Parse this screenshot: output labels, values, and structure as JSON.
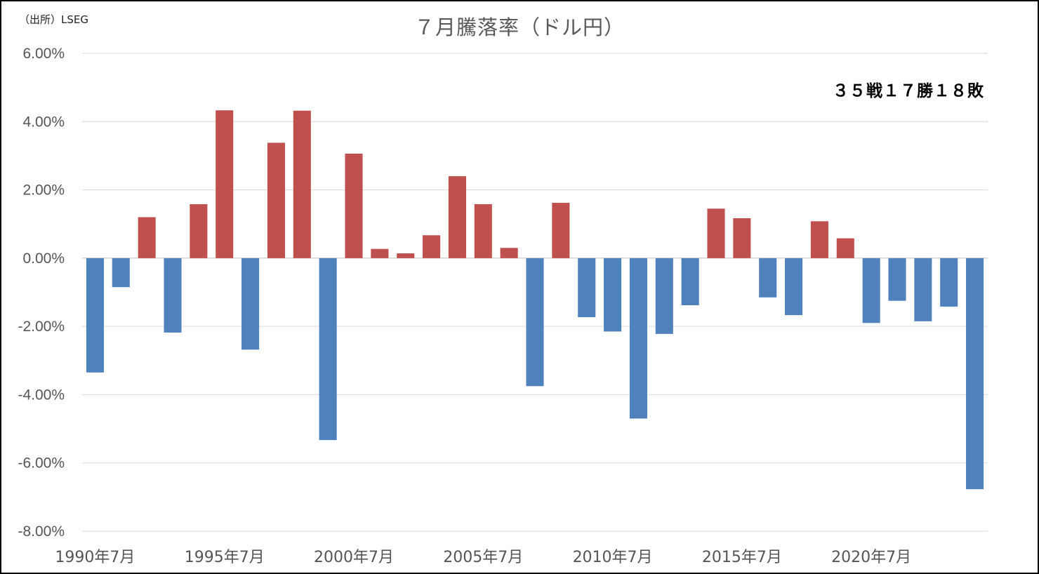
{
  "source_label": "（出所）LSEG",
  "chart_data": {
    "type": "bar",
    "title": "７月騰落率（ドル円）",
    "annotation": "３５戦１７勝１８敗",
    "xlabel": "",
    "ylabel": "",
    "ylim": [
      -0.08,
      0.06
    ],
    "y_ticks": [
      0.06,
      0.04,
      0.02,
      0.0,
      -0.02,
      -0.04,
      -0.06,
      -0.08
    ],
    "y_tick_labels": [
      "6.00%",
      "4.00%",
      "2.00%",
      "0.00%",
      "-2.00%",
      "-4.00%",
      "-6.00%",
      "-8.00%"
    ],
    "grid": true,
    "legend": "none",
    "positive_color": "#C0504D",
    "negative_color": "#4F81BD",
    "categories": [
      "1990年7月",
      "1991年7月",
      "1992年7月",
      "1993年7月",
      "1994年7月",
      "1995年7月",
      "1996年7月",
      "1997年7月",
      "1998年7月",
      "1999年7月",
      "2000年7月",
      "2001年7月",
      "2002年7月",
      "2003年7月",
      "2004年7月",
      "2005年7月",
      "2006年7月",
      "2007年7月",
      "2008年7月",
      "2009年7月",
      "2010年7月",
      "2011年7月",
      "2012年7月",
      "2013年7月",
      "2014年7月",
      "2015年7月",
      "2016年7月",
      "2017年7月",
      "2018年7月",
      "2019年7月",
      "2020年7月",
      "2021年7月",
      "2022年7月",
      "2023年7月",
      "2024年7月"
    ],
    "x_tick_labels": [
      "1990年7月",
      "1995年7月",
      "2000年7月",
      "2005年7月",
      "2010年7月",
      "2015年7月",
      "2020年7月"
    ],
    "values": [
      -0.0335,
      -0.0085,
      0.012,
      -0.0218,
      0.0158,
      0.0433,
      -0.0268,
      0.0338,
      0.0432,
      -0.0533,
      0.0306,
      0.0027,
      0.0014,
      0.0067,
      0.024,
      0.0158,
      0.003,
      -0.0375,
      0.0162,
      -0.0173,
      -0.0215,
      -0.047,
      -0.0222,
      -0.0138,
      0.0145,
      0.0117,
      -0.0115,
      -0.0167,
      0.0108,
      0.0058,
      -0.019,
      -0.0125,
      -0.0185,
      -0.0142,
      -0.0677
    ]
  }
}
